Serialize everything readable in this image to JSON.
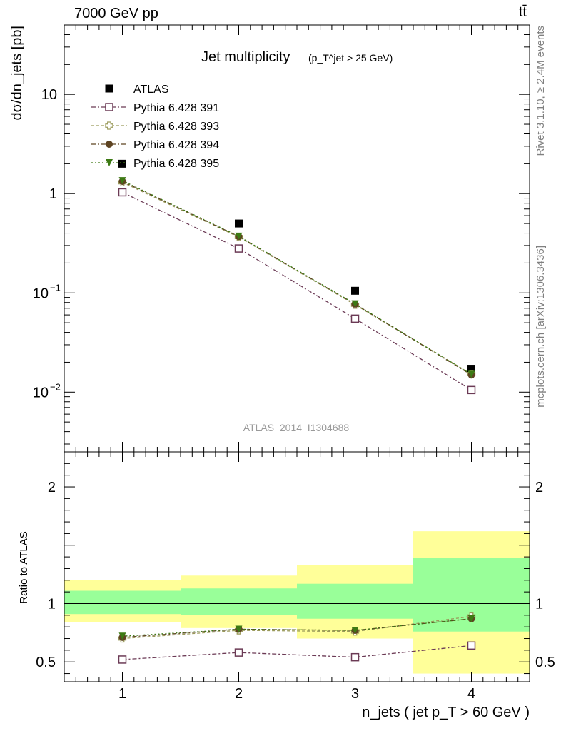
{
  "header": {
    "energy": "7000 GeV pp",
    "process": "tt̄"
  },
  "side": {
    "rivet": "Rivet 3.1.10, ≥ 2.4M events",
    "mcplots": "mcplots.cern.ch [arXiv:1306.3436]"
  },
  "watermark": "ATLAS_2014_I1304688",
  "chart_data": {
    "type": "scatter",
    "title_main": "Jet multiplicity",
    "title_cut": "(p_T^jet > 25 GeV)",
    "xlabel": "n_jets ( jet p_T > 60 GeV )",
    "ylabel_top": "dσ/dn_jets [pb]",
    "ylabel_ratio": "Ratio to ATLAS",
    "x": [
      1,
      2,
      3,
      4
    ],
    "xlim": [
      0.5,
      4.5
    ],
    "top": {
      "yscale": "log",
      "ylim": [
        0.0025,
        50
      ],
      "yticks": [
        {
          "v": 10,
          "label": "10"
        },
        {
          "v": 1,
          "label": "1"
        },
        {
          "v": 0.1,
          "label": "10",
          "exp": "−1"
        },
        {
          "v": 0.01,
          "label": "10",
          "exp": "−2"
        }
      ]
    },
    "ratio": {
      "ylim": [
        0.33,
        2.3
      ],
      "yticks": [
        {
          "v": 0.5,
          "label": "0.5"
        },
        {
          "v": 1,
          "label": "1"
        },
        {
          "v": 2,
          "label": "2"
        }
      ],
      "bands": [
        {
          "x0": 0.5,
          "x1": 1.5,
          "inner": [
            0.91,
            1.11
          ],
          "outer": [
            0.84,
            1.2
          ]
        },
        {
          "x0": 1.5,
          "x1": 2.5,
          "inner": [
            0.9,
            1.13
          ],
          "outer": [
            0.79,
            1.24
          ]
        },
        {
          "x0": 2.5,
          "x1": 3.5,
          "inner": [
            0.87,
            1.17
          ],
          "outer": [
            0.7,
            1.33
          ]
        },
        {
          "x0": 3.5,
          "x1": 4.5,
          "inner": [
            0.76,
            1.39
          ],
          "outer": [
            0.4,
            1.62
          ]
        }
      ]
    },
    "legend_position": "top-left",
    "series": [
      {
        "name": "ATLAS",
        "marker": "square-filled",
        "color": "#000000",
        "values": [
          2.0,
          0.5,
          0.105,
          0.0172
        ],
        "ratio": [
          1,
          1,
          1,
          1
        ]
      },
      {
        "name": "Pythia 6.428 391",
        "marker": "square-open",
        "color": "#6b3a55",
        "dash": "6,3,2,3",
        "values": [
          1.03,
          0.28,
          0.055,
          0.0105
        ],
        "ratio": [
          0.52,
          0.58,
          0.54,
          0.64
        ]
      },
      {
        "name": "Pythia 6.428 393",
        "marker": "cross-open",
        "color": "#9a9a5a",
        "dash": "4,3",
        "values": [
          1.3,
          0.365,
          0.076,
          0.0152
        ],
        "ratio": [
          0.7,
          0.77,
          0.76,
          0.89
        ]
      },
      {
        "name": "Pythia 6.428 394",
        "marker": "circle-filled",
        "color": "#5e4422",
        "dash": "6,3,2,3",
        "values": [
          1.33,
          0.37,
          0.077,
          0.0149
        ],
        "ratio": [
          0.71,
          0.78,
          0.77,
          0.87
        ]
      },
      {
        "name": "Pythia 6.428 395",
        "marker": "triangle-down-filled",
        "color": "#3d7a14",
        "dash": "2,3",
        "values": [
          1.35,
          0.372,
          0.0775,
          0.0151
        ],
        "ratio": [
          0.72,
          0.78,
          0.77,
          0.87
        ]
      }
    ]
  }
}
